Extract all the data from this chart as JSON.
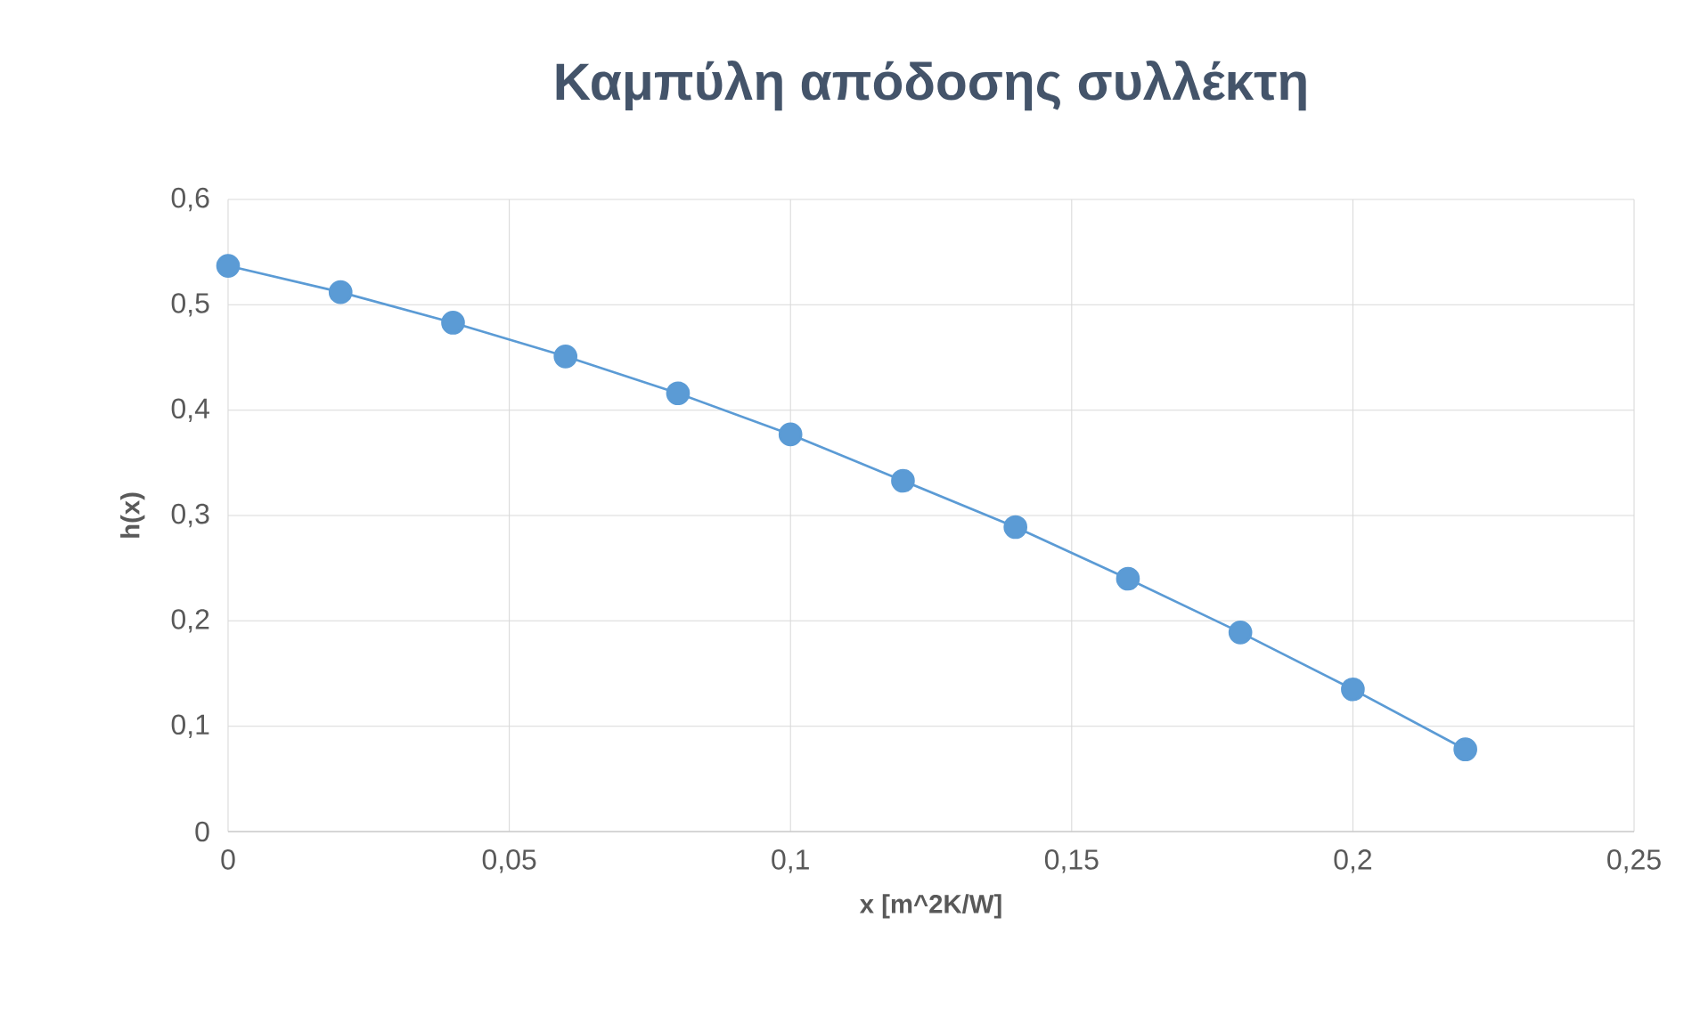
{
  "chart_data": {
    "type": "line",
    "title": "Καμπύλη απόδοσης συλλέκτη",
    "xlabel": "x [m^2K/W]",
    "ylabel": "h(x)",
    "x": [
      0,
      0.02,
      0.04,
      0.06,
      0.08,
      0.1,
      0.12,
      0.14,
      0.16,
      0.18,
      0.2,
      0.22
    ],
    "series": [
      {
        "color": "#5b9bd5",
        "values": [
          0.537,
          0.512,
          0.483,
          0.451,
          0.416,
          0.377,
          0.333,
          0.289,
          0.24,
          0.189,
          0.135,
          0.078
        ]
      }
    ],
    "xlim": [
      0,
      0.25
    ],
    "xticks": [
      0,
      {
        "value": 0.05,
        "label": "0,05"
      },
      {
        "value": 0.1,
        "label": "0,1"
      },
      {
        "value": 0.15,
        "label": "0,15"
      },
      {
        "value": 0.2,
        "label": "0,2"
      },
      {
        "value": 0.25,
        "label": "0,25"
      }
    ],
    "ylim": [
      0,
      0.6
    ],
    "yticks": [
      0,
      {
        "value": 0.1,
        "label": "0,1"
      },
      {
        "value": 0.2,
        "label": "0,2"
      },
      {
        "value": 0.3,
        "label": "0,3"
      },
      {
        "value": 0.4,
        "label": "0,4"
      },
      {
        "value": 0.5,
        "label": "0,5"
      },
      {
        "value": 0.6,
        "label": "0,6"
      }
    ],
    "grid": true,
    "marker": "circle",
    "line_style": "solid"
  }
}
